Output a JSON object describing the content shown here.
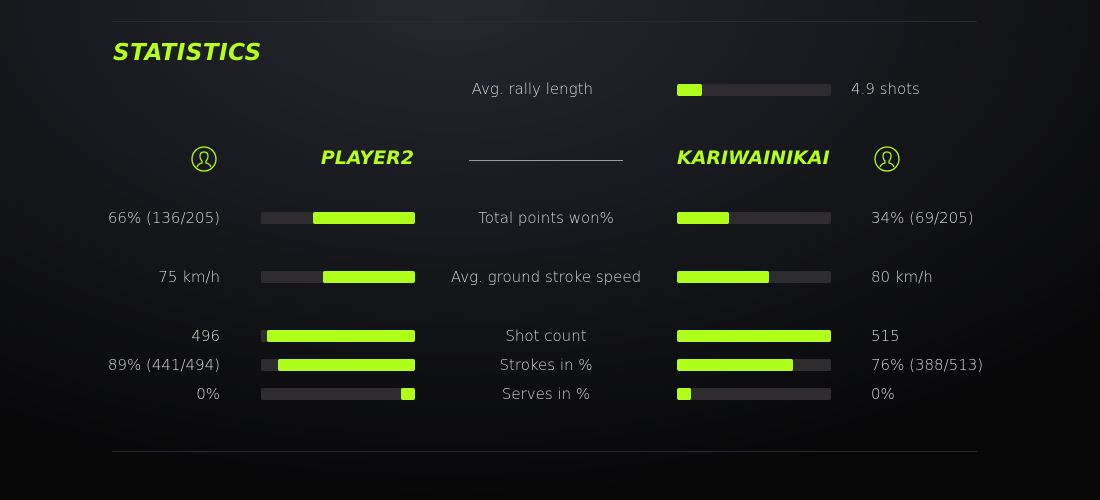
{
  "title": "STATISTICS",
  "colors": {
    "accent": "#b0ff1a",
    "track": "#2e2c2e"
  },
  "rally": {
    "label": "Avg. rally length",
    "value": "4.9 shots",
    "fill": 0.16
  },
  "players": {
    "left": {
      "name": "PLAYER2",
      "icon": "user-circle-icon"
    },
    "right": {
      "name": "KARIWAINIKAI",
      "icon": "user-circle-icon"
    }
  },
  "stats": [
    {
      "label": "Total points won%",
      "left": "66% (136/205)",
      "right": "34% (69/205)",
      "left_fill": 0.66,
      "right_fill": 0.34
    },
    {
      "label": "Avg. ground stroke speed",
      "left": "75 km/h",
      "right": "80 km/h",
      "left_fill": 0.6,
      "right_fill": 0.6
    },
    {
      "label": "Shot count",
      "left": "496",
      "right": "515",
      "left_fill": 0.96,
      "right_fill": 1.0
    },
    {
      "label": "Strokes in %",
      "left": "89% (441/494)",
      "right": "76% (388/513)",
      "left_fill": 0.89,
      "right_fill": 0.75
    },
    {
      "label": "Serves in %",
      "left": "0%",
      "right": "0%",
      "left_fill": 0.09,
      "right_fill": 0.09
    }
  ]
}
